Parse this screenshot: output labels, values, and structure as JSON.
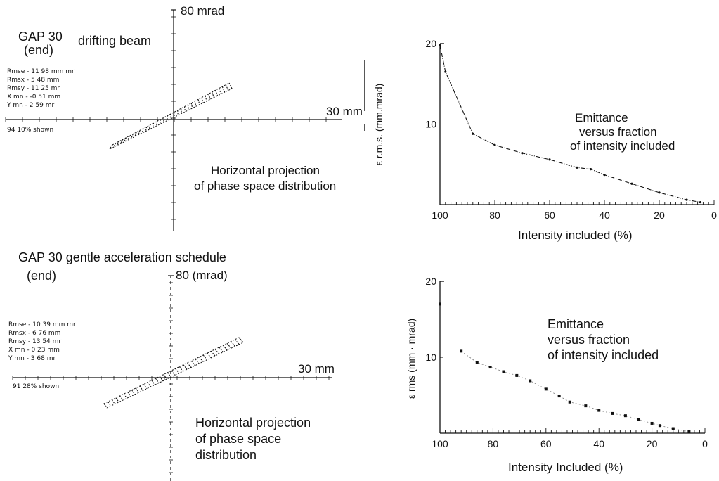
{
  "panels": [
    {
      "title": "GAP 30",
      "subtitle": "(end)",
      "heading": "drifting beam",
      "y_axis_label": "80 mrad",
      "x_axis_label": "30 mm",
      "stats": [
        "Rmse - 11 98 mm mr",
        "Rmsx - 5 48 mm",
        "Rmsy - 11 25 mr",
        "X mn - -0 51 mm",
        "Y mn - 2 59 mr"
      ],
      "shown": "94 10% shown",
      "caption_line1": "Horizontal projection",
      "caption_line2": "of phase space distribution",
      "caption_line3": ""
    },
    {
      "title": "GAP 30 gentle acceleration schedule",
      "subtitle": "(end)",
      "heading": "",
      "y_axis_label": "80 (mrad)",
      "x_axis_label": "30 mm",
      "stats": [
        "Rmse - 10 39 mm mr",
        "Rmsx - 6 76 mm",
        "Rmsy - 13 54 mr",
        "X mn - 0 23 mm",
        "Y mn - 3 68 mr"
      ],
      "shown": "91 28% shown",
      "caption_line1": "Horizontal projection",
      "caption_line2": "of phase space",
      "caption_line3": "distribution"
    }
  ],
  "colors": {
    "ink": "#111111",
    "background": "#ffffff"
  },
  "chart_data": [
    {
      "type": "line",
      "title": "Emittance versus fraction of intensity included",
      "annotation": [
        "Emittance",
        "versus fraction",
        "of intensity included"
      ],
      "xlabel": "Intensity included (%)",
      "ylabel": "ε r.m.s. (mm.mrad)",
      "xlim": [
        100,
        0
      ],
      "x_ticks": [
        "100",
        "80",
        "60",
        "40",
        "20",
        "0"
      ],
      "y_ticks": [
        "20",
        "10"
      ],
      "x": [
        100,
        98,
        88,
        80,
        70,
        60,
        50,
        45,
        40,
        30,
        20,
        10,
        5
      ],
      "y": [
        19.8,
        16.5,
        8.8,
        7.4,
        6.4,
        5.6,
        4.6,
        4.4,
        3.7,
        2.6,
        1.5,
        0.6,
        0.3
      ],
      "grid": false
    },
    {
      "type": "scatter",
      "title": "Emittance versus fraction of intensity included",
      "annotation": [
        "Emittance",
        "versus fraction",
        "of intensity included"
      ],
      "xlabel": "Intensity Included (%)",
      "ylabel": "ε rms (mm · mrad)",
      "xlim": [
        100,
        0
      ],
      "x_ticks": [
        "100",
        "80",
        "60",
        "40",
        "20",
        "0"
      ],
      "y_ticks": [
        "20",
        "10"
      ],
      "x": [
        100,
        92,
        86,
        81,
        76,
        71,
        66,
        60,
        55,
        51,
        45,
        40,
        35,
        30,
        25,
        20,
        17,
        12,
        6
      ],
      "y": [
        17,
        10.8,
        9.3,
        8.7,
        8.1,
        7.6,
        6.9,
        5.8,
        4.9,
        4.1,
        3.6,
        3.0,
        2.6,
        2.3,
        1.8,
        1.3,
        1.0,
        0.6,
        0.2
      ],
      "grid": false
    }
  ]
}
